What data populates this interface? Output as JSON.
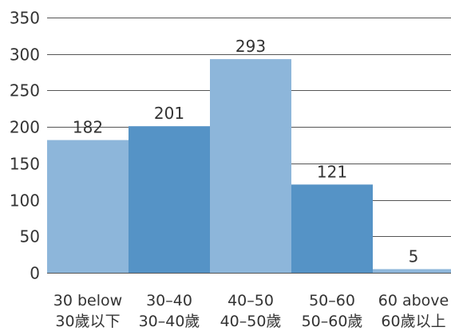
{
  "chart_data": {
    "type": "bar",
    "title": "",
    "xlabel": "",
    "ylabel": "",
    "ylim": [
      0,
      350
    ],
    "y_ticks": [
      0,
      50,
      100,
      150,
      200,
      250,
      300,
      350
    ],
    "grid": true,
    "categories": [
      {
        "line1": "30 below",
        "line2": "30歲以下"
      },
      {
        "line1": "30–40",
        "line2": "30–40歲"
      },
      {
        "line1": "40–50",
        "line2": "40–50歲"
      },
      {
        "line1": "50–60",
        "line2": "50–60歲"
      },
      {
        "line1": "60 above",
        "line2": "60歲以上"
      }
    ],
    "values": [
      182,
      201,
      293,
      121,
      5
    ],
    "colors": [
      "#8db6da",
      "#5593c6",
      "#8db6da",
      "#5593c6",
      "#8db6da"
    ]
  }
}
